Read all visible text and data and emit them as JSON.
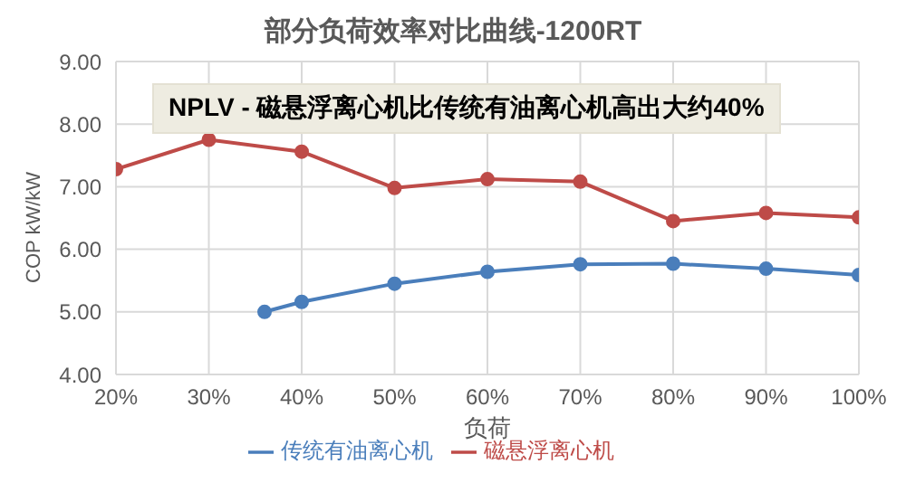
{
  "chart_data": {
    "type": "line",
    "title": "部分负荷效率对比曲线-1200RT",
    "xlabel": "负荷",
    "ylabel": "COP kW/kW",
    "annotations": [
      "NPLV - 磁悬浮离心机比传统有油离心机高出大约40%"
    ],
    "series": [
      {
        "name": "传统有油离心机",
        "color": "#4a7ebb",
        "x": [
          36,
          40,
          50,
          60,
          70,
          80,
          90,
          100
        ],
        "values": [
          5.0,
          5.16,
          5.45,
          5.64,
          5.76,
          5.77,
          5.69,
          5.59
        ]
      },
      {
        "name": "磁悬浮离心机",
        "color": "#be4b48",
        "x": [
          20,
          30,
          40,
          50,
          60,
          70,
          80,
          90,
          100
        ],
        "values": [
          7.28,
          7.75,
          7.56,
          6.98,
          7.12,
          7.08,
          6.45,
          6.58,
          6.51
        ]
      }
    ],
    "xlim": [
      20,
      100
    ],
    "xticks": [
      {
        "value": 20,
        "label": "20%"
      },
      {
        "value": 30,
        "label": "30%"
      },
      {
        "value": 40,
        "label": "40%"
      },
      {
        "value": 50,
        "label": "50%"
      },
      {
        "value": 60,
        "label": "60%"
      },
      {
        "value": 70,
        "label": "70%"
      },
      {
        "value": 80,
        "label": "80%"
      },
      {
        "value": 90,
        "label": "90%"
      },
      {
        "value": 100,
        "label": "100%"
      }
    ],
    "ylim": [
      4,
      9
    ],
    "yticks": [
      {
        "value": 4,
        "label": "4.00"
      },
      {
        "value": 5,
        "label": "5.00"
      },
      {
        "value": 6,
        "label": "6.00"
      },
      {
        "value": 7,
        "label": "7.00"
      },
      {
        "value": 8,
        "label": "8.00"
      },
      {
        "value": 9,
        "label": "9.00"
      }
    ],
    "grid": true,
    "legend": "bottom",
    "marker": "circle",
    "line_style": "solid"
  }
}
